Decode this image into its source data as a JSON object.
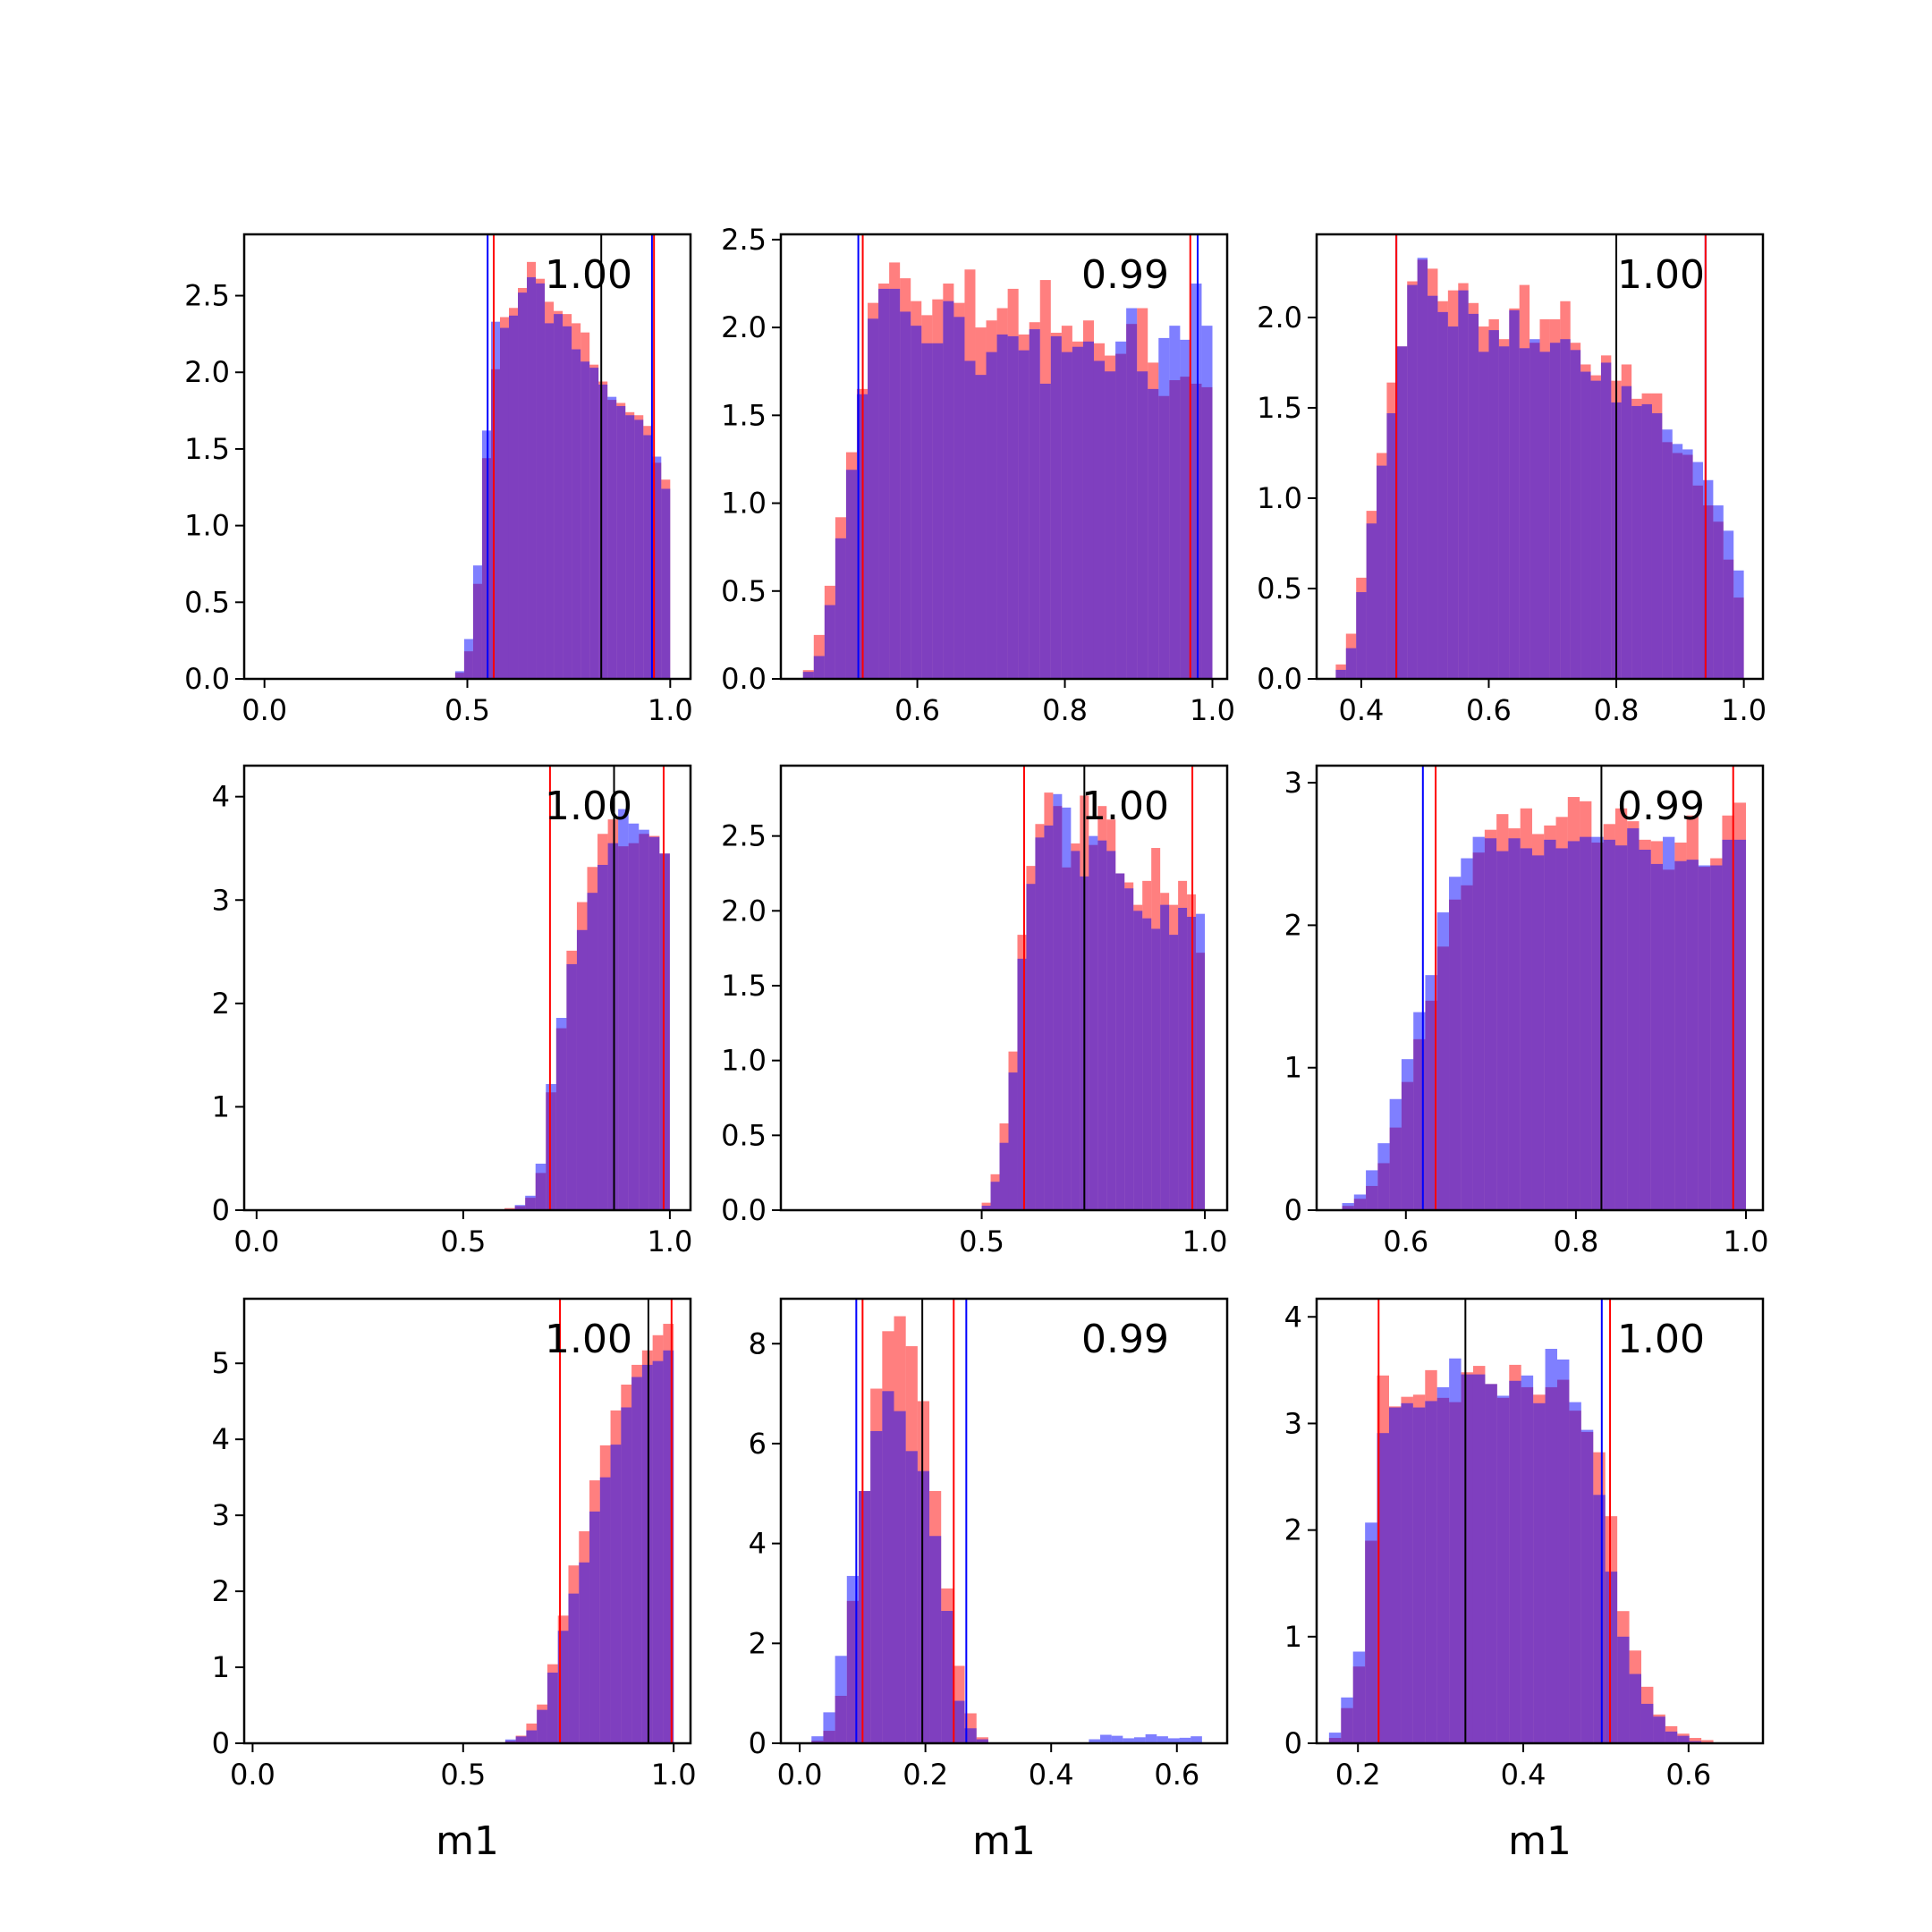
{
  "figure": {
    "xlabel": "m1",
    "colors": {
      "series_a": "#ff0000",
      "series_b": "#0000ff",
      "overlap": "#7f3fbf",
      "median_line": "#000000"
    },
    "alpha": 0.5
  },
  "chart_data": [
    {
      "type": "histogram",
      "annotation": "1.00",
      "xlabel": "",
      "xlim": [
        -0.05,
        1.05
      ],
      "ylim": [
        0,
        2.9
      ],
      "xticks": [
        0.0,
        0.5,
        1.0
      ],
      "xtick_labels": [
        "0.0",
        "0.5",
        "1.0"
      ],
      "yticks": [
        0,
        0.5,
        1.0,
        1.5,
        2.0,
        2.5
      ],
      "ytick_labels": [
        "0.0",
        "0.5",
        "1.0",
        "1.5",
        "2.0",
        "2.5"
      ],
      "bins": [
        0.47,
        1.0
      ],
      "series": [
        {
          "values": [
            0.04,
            0.18,
            0.62,
            1.44,
            2.02,
            2.36,
            2.42,
            2.55,
            2.72,
            2.61,
            2.46,
            2.4,
            2.38,
            2.32,
            2.26,
            2.05,
            1.94,
            1.82,
            1.8,
            1.74,
            1.72,
            1.65,
            1.41,
            1.3
          ]
        },
        {
          "values": [
            0.05,
            0.26,
            0.74,
            1.62,
            2.33,
            2.29,
            2.37,
            2.52,
            2.62,
            2.58,
            2.32,
            2.38,
            2.3,
            2.15,
            2.07,
            2.03,
            1.92,
            1.84,
            1.78,
            1.72,
            1.69,
            1.59,
            1.45,
            1.24
          ]
        }
      ],
      "vlines": {
        "red": [
          0.565,
          0.96
        ],
        "blue": [
          0.55,
          0.955
        ],
        "black": [
          0.83
        ]
      }
    },
    {
      "type": "histogram",
      "annotation": "0.99",
      "xlabel": "",
      "xlim": [
        0.415,
        1.02
      ],
      "ylim": [
        0,
        2.53
      ],
      "xticks": [
        0.6,
        0.8,
        1.0
      ],
      "xtick_labels": [
        "0.6",
        "0.8",
        "1.0"
      ],
      "yticks": [
        0,
        0.5,
        1.0,
        1.5,
        2.0,
        2.5
      ],
      "ytick_labels": [
        "0.0",
        "0.5",
        "1.0",
        "1.5",
        "2.0",
        "2.5"
      ],
      "bins": [
        0.445,
        1.0
      ],
      "series": [
        {
          "values": [
            0.05,
            0.25,
            0.53,
            0.92,
            1.29,
            1.65,
            2.14,
            2.25,
            2.37,
            2.28,
            2.15,
            2.07,
            2.16,
            2.25,
            2.14,
            2.33,
            2.0,
            2.04,
            2.11,
            2.22,
            1.96,
            2.03,
            2.27,
            1.97,
            2.01,
            1.92,
            2.04,
            1.91,
            1.84,
            1.85,
            2.02,
            2.11,
            1.8,
            1.61,
            1.7,
            1.72,
            1.68,
            1.66
          ]
        },
        {
          "values": [
            0.04,
            0.13,
            0.42,
            0.8,
            1.19,
            1.62,
            2.05,
            2.22,
            2.22,
            2.09,
            2.01,
            1.91,
            1.91,
            2.15,
            2.06,
            1.81,
            1.73,
            1.86,
            1.96,
            1.95,
            1.87,
            1.99,
            1.68,
            1.95,
            1.86,
            1.89,
            1.92,
            1.81,
            1.75,
            1.92,
            2.11,
            1.75,
            1.65,
            1.94,
            2.01,
            1.93,
            2.25,
            2.01
          ]
        }
      ],
      "vlines": {
        "red": [
          0.526,
          0.97
        ],
        "blue": [
          0.52,
          0.98
        ],
        "black": []
      }
    },
    {
      "type": "histogram",
      "annotation": "1.00",
      "xlabel": "",
      "xlim": [
        0.33,
        1.03
      ],
      "ylim": [
        0,
        2.46
      ],
      "xticks": [
        0.4,
        0.6,
        0.8,
        1.0
      ],
      "xtick_labels": [
        "0.4",
        "0.6",
        "0.8",
        "1.0"
      ],
      "yticks": [
        0,
        0.5,
        1.0,
        1.5,
        2.0
      ],
      "ytick_labels": [
        "0.0",
        "0.5",
        "1.0",
        "1.5",
        "2.0"
      ],
      "bins": [
        0.36,
        1.0
      ],
      "series": [
        {
          "values": [
            0.08,
            0.25,
            0.56,
            0.93,
            1.25,
            1.64,
            1.84,
            2.2,
            2.32,
            2.27,
            2.09,
            2.15,
            2.19,
            2.08,
            1.95,
            1.99,
            1.88,
            2.05,
            2.18,
            1.86,
            1.99,
            1.99,
            2.09,
            1.86,
            1.74,
            1.68,
            1.79,
            1.65,
            1.74,
            1.55,
            1.58,
            1.58,
            1.31,
            1.25,
            1.24,
            1.07,
            0.96,
            0.87,
            0.66,
            0.45
          ]
        },
        {
          "values": [
            0.05,
            0.17,
            0.48,
            0.86,
            1.18,
            1.47,
            1.84,
            2.18,
            2.33,
            2.12,
            2.03,
            1.95,
            2.15,
            2.02,
            1.81,
            1.93,
            1.84,
            2.04,
            1.83,
            1.88,
            1.81,
            1.86,
            1.88,
            1.82,
            1.7,
            1.65,
            1.75,
            1.53,
            1.62,
            1.51,
            1.52,
            1.47,
            1.38,
            1.3,
            1.27,
            1.2,
            1.1,
            0.96,
            0.82,
            0.6
          ]
        }
      ],
      "vlines": {
        "red": [
          0.455,
          0.94
        ],
        "blue": [
          0.455,
          0.94
        ],
        "black": [
          0.8
        ]
      }
    },
    {
      "type": "histogram",
      "annotation": "1.00",
      "xlabel": "",
      "xlim": [
        -0.03,
        1.05
      ],
      "ylim": [
        0,
        4.3
      ],
      "xticks": [
        0.0,
        0.5,
        1.0
      ],
      "xtick_labels": [
        "0.0",
        "0.5",
        "1.0"
      ],
      "yticks": [
        0,
        1,
        2,
        3,
        4
      ],
      "ytick_labels": [
        "0",
        "1",
        "2",
        "3",
        "4"
      ],
      "bins": [
        0.6,
        1.0
      ],
      "series": [
        {
          "values": [
            0.02,
            0.04,
            0.12,
            0.36,
            1.14,
            1.76,
            2.51,
            2.98,
            3.32,
            3.64,
            3.78,
            3.52,
            3.55,
            3.64,
            3.62,
            3.45
          ]
        },
        {
          "values": [
            0.01,
            0.05,
            0.14,
            0.45,
            1.22,
            1.86,
            2.38,
            2.71,
            3.07,
            3.34,
            3.55,
            3.88,
            3.74,
            3.68,
            3.61,
            3.45
          ]
        }
      ],
      "vlines": {
        "red": [
          0.71,
          0.985
        ],
        "blue": [],
        "black": [
          0.865
        ]
      }
    },
    {
      "type": "histogram",
      "annotation": "1.00",
      "xlabel": "",
      "xlim": [
        0.05,
        1.05
      ],
      "ylim": [
        0,
        2.97
      ],
      "xticks": [
        0.5,
        1.0
      ],
      "xtick_labels": [
        "0.5",
        "1.0"
      ],
      "yticks": [
        0,
        0.5,
        1.0,
        1.5,
        2.0,
        2.5
      ],
      "ytick_labels": [
        "0.0",
        "0.5",
        "1.0",
        "1.5",
        "2.0",
        "2.5"
      ],
      "bins": [
        0.5,
        1.0
      ],
      "series": [
        {
          "values": [
            0.05,
            0.24,
            0.58,
            1.06,
            1.84,
            2.3,
            2.58,
            2.79,
            2.7,
            2.29,
            2.45,
            2.77,
            2.44,
            2.7,
            2.61,
            2.25,
            2.19,
            2.04,
            2.2,
            2.42,
            2.12,
            2.04,
            2.2,
            2.11,
            1.72
          ]
        },
        {
          "values": [
            0.03,
            0.19,
            0.45,
            0.92,
            1.68,
            2.18,
            2.49,
            2.57,
            2.78,
            2.69,
            2.4,
            2.23,
            2.5,
            2.47,
            2.4,
            2.25,
            2.15,
            2.0,
            1.95,
            1.88,
            2.04,
            1.84,
            2.02,
            1.96,
            1.98
          ]
        }
      ],
      "vlines": {
        "red": [
          0.595,
          0.972
        ],
        "blue": [],
        "black": [
          0.73
        ]
      }
    },
    {
      "type": "histogram",
      "annotation": "0.99",
      "xlabel": "",
      "xlim": [
        0.495,
        1.02
      ],
      "ylim": [
        0,
        3.12
      ],
      "xticks": [
        0.6,
        0.8,
        1.0
      ],
      "xtick_labels": [
        "0.6",
        "0.8",
        "1.0"
      ],
      "yticks": [
        0,
        1,
        2,
        3
      ],
      "ytick_labels": [
        "0",
        "1",
        "2",
        "3"
      ],
      "bins": [
        0.525,
        1.0
      ],
      "series": [
        {
          "values": [
            0.03,
            0.08,
            0.17,
            0.33,
            0.58,
            0.9,
            1.2,
            1.47,
            1.85,
            2.18,
            2.28,
            2.51,
            2.67,
            2.78,
            2.68,
            2.82,
            2.64,
            2.7,
            2.76,
            2.9,
            2.87,
            2.58,
            2.71,
            2.82,
            2.73,
            2.6,
            2.59,
            2.39,
            2.58,
            2.77,
            2.41,
            2.47,
            2.77,
            2.86
          ]
        },
        {
          "values": [
            0.05,
            0.11,
            0.28,
            0.47,
            0.78,
            1.06,
            1.39,
            1.65,
            2.09,
            2.34,
            2.47,
            2.62,
            2.61,
            2.52,
            2.61,
            2.54,
            2.49,
            2.6,
            2.54,
            2.59,
            2.62,
            2.62,
            2.6,
            2.56,
            2.68,
            2.53,
            2.43,
            2.62,
            2.45,
            2.46,
            2.42,
            2.42,
            2.6,
            2.6
          ]
        }
      ],
      "vlines": {
        "red": [
          0.635,
          0.985
        ],
        "blue": [
          0.62
        ],
        "black": [
          0.83
        ]
      }
    },
    {
      "type": "histogram",
      "annotation": "1.00",
      "xlabel": "m1",
      "xlim": [
        -0.02,
        1.04
      ],
      "ylim": [
        0,
        5.85
      ],
      "xticks": [
        0.0,
        0.5,
        1.0
      ],
      "xtick_labels": [
        "0.0",
        "0.5",
        "1.0"
      ],
      "yticks": [
        0,
        1,
        2,
        3,
        4,
        5
      ],
      "ytick_labels": [
        "0",
        "1",
        "2",
        "3",
        "4",
        "5"
      ],
      "bins": [
        0.6,
        1.0
      ],
      "series": [
        {
          "values": [
            0.03,
            0.1,
            0.26,
            0.51,
            1.04,
            1.68,
            2.34,
            2.79,
            3.46,
            3.92,
            4.38,
            4.72,
            4.98,
            5.17,
            5.37,
            5.52
          ]
        },
        {
          "values": [
            0.05,
            0.09,
            0.17,
            0.44,
            0.93,
            1.48,
            1.97,
            2.38,
            3.05,
            3.5,
            3.93,
            4.42,
            4.82,
            4.98,
            5.03,
            5.17
          ]
        }
      ],
      "vlines": {
        "red": [
          0.73,
          0.995
        ],
        "blue": [],
        "black": [
          0.94
        ]
      }
    },
    {
      "type": "histogram",
      "annotation": "0.99",
      "xlabel": "m1",
      "xlim": [
        -0.03,
        0.68
      ],
      "ylim": [
        0,
        8.9
      ],
      "xticks": [
        0.0,
        0.2,
        0.4,
        0.6
      ],
      "xtick_labels": [
        "0.0",
        "0.2",
        "0.4",
        "0.6"
      ],
      "yticks": [
        0,
        2,
        4,
        6,
        8
      ],
      "ytick_labels": [
        "0",
        "2",
        "4",
        "6",
        "8"
      ],
      "bins": [
        0.0,
        0.3
      ],
      "series": [
        {
          "values": [
            0.0,
            0.05,
            0.25,
            0.95,
            2.85,
            5.05,
            7.1,
            8.25,
            8.55,
            7.95,
            6.85,
            5.05,
            3.1,
            1.55,
            0.6,
            0.12
          ]
        },
        {
          "values": [
            0.0,
            0.14,
            0.62,
            1.75,
            3.35,
            5.05,
            6.25,
            7.05,
            6.65,
            5.85,
            5.45,
            4.15,
            2.65,
            0.85,
            0.3,
            0.08
          ]
        }
      ],
      "tail": {
        "bins": [
          0.46,
          0.64
        ],
        "values": [
          0.08,
          0.17,
          0.15,
          0.1,
          0.12,
          0.18,
          0.14,
          0.1,
          0.11,
          0.14
        ]
      },
      "vlines": {
        "red": [
          0.1,
          0.245
        ],
        "blue": [
          0.09,
          0.265
        ],
        "black": [
          0.195
        ]
      }
    },
    {
      "type": "histogram",
      "annotation": "1.00",
      "xlabel": "m1",
      "xlim": [
        0.15,
        0.69
      ],
      "ylim": [
        0,
        4.17
      ],
      "xticks": [
        0.2,
        0.4,
        0.6
      ],
      "xtick_labels": [
        "0.2",
        "0.4",
        "0.6"
      ],
      "yticks": [
        0,
        1,
        2,
        3,
        4
      ],
      "ytick_labels": [
        "0",
        "1",
        "2",
        "3",
        "4"
      ],
      "bins": [
        0.165,
        0.63
      ],
      "series": [
        {
          "values": [
            0.05,
            0.33,
            0.72,
            1.9,
            3.45,
            3.16,
            3.25,
            3.27,
            3.5,
            3.24,
            3.2,
            3.48,
            3.54,
            3.37,
            3.24,
            3.55,
            3.34,
            3.27,
            3.34,
            3.41,
            3.12,
            2.92,
            2.73,
            2.13,
            1.24,
            0.87,
            0.53,
            0.27,
            0.16,
            0.09,
            0.05,
            0.03
          ]
        },
        {
          "values": [
            0.1,
            0.43,
            0.86,
            2.07,
            2.91,
            3.15,
            3.19,
            3.15,
            3.21,
            3.34,
            3.61,
            3.46,
            3.46,
            3.37,
            3.26,
            3.4,
            3.45,
            3.19,
            3.7,
            3.6,
            3.2,
            2.94,
            2.33,
            1.61,
            1.0,
            0.65,
            0.37,
            0.25,
            0.11,
            0.07,
            0.02,
            0.01
          ]
        }
      ],
      "vlines": {
        "red": [
          0.225,
          0.505
        ],
        "blue": [
          0.495
        ],
        "black": [
          0.33
        ]
      }
    }
  ]
}
